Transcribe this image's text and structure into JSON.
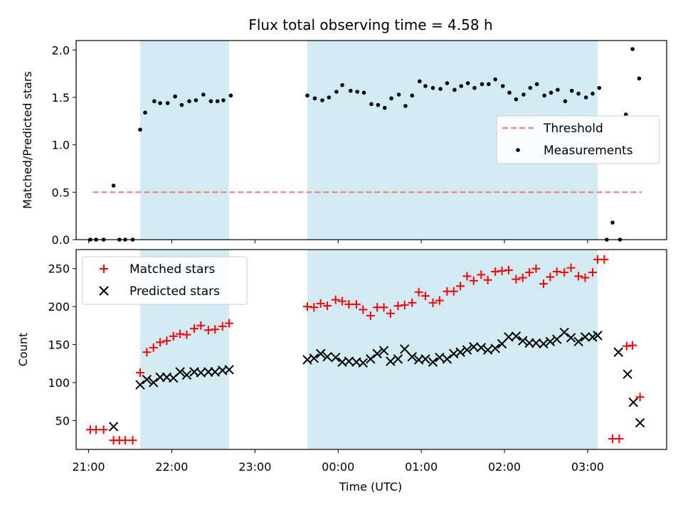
{
  "chart_data": {
    "title": "Flux total observing time = 4.58 h",
    "xlabel": "Time (UTC)",
    "x_ticks": [
      "21:00",
      "22:00",
      "23:00",
      "00:00",
      "01:00",
      "02:00",
      "03:00"
    ],
    "x_range_hours": [
      20.85,
      27.95
    ],
    "shaded_spans_hours": [
      [
        21.62,
        22.69
      ],
      [
        23.63,
        27.12
      ]
    ],
    "shade_color": "#add8e6",
    "panels": [
      {
        "type": "scatter",
        "ylabel": "Matched/Predicted stars",
        "ylim": [
          0,
          2.1
        ],
        "yticks": [
          "0.0",
          "0.5",
          "1.0",
          "1.5",
          "2.0"
        ],
        "threshold": {
          "name": "Threshold",
          "value": 0.5,
          "x_range": [
            21.05,
            27.65
          ],
          "color": "#f08080"
        },
        "legend_location": "center-right",
        "series": [
          {
            "name": "Measurements",
            "marker": "dot",
            "color": "#000000",
            "points": [
              [
                21.02,
                0.0
              ],
              [
                21.09,
                0.0
              ],
              [
                21.18,
                0.0
              ],
              [
                21.3,
                0.57
              ],
              [
                21.37,
                0.0
              ],
              [
                21.44,
                0.0
              ],
              [
                21.53,
                0.0
              ],
              [
                21.62,
                1.16
              ],
              [
                21.68,
                1.34
              ],
              [
                21.79,
                1.46
              ],
              [
                21.86,
                1.44
              ],
              [
                21.95,
                1.44
              ],
              [
                22.04,
                1.51
              ],
              [
                22.12,
                1.42
              ],
              [
                22.21,
                1.46
              ],
              [
                22.29,
                1.47
              ],
              [
                22.38,
                1.53
              ],
              [
                22.47,
                1.46
              ],
              [
                22.55,
                1.46
              ],
              [
                22.62,
                1.47
              ],
              [
                22.71,
                1.52
              ],
              [
                23.63,
                1.52
              ],
              [
                23.72,
                1.49
              ],
              [
                23.81,
                1.47
              ],
              [
                23.89,
                1.5
              ],
              [
                23.98,
                1.56
              ],
              [
                24.05,
                1.63
              ],
              [
                24.15,
                1.57
              ],
              [
                24.23,
                1.56
              ],
              [
                24.31,
                1.55
              ],
              [
                24.4,
                1.43
              ],
              [
                24.48,
                1.42
              ],
              [
                24.56,
                1.39
              ],
              [
                24.64,
                1.49
              ],
              [
                24.73,
                1.53
              ],
              [
                24.81,
                1.41
              ],
              [
                24.89,
                1.52
              ],
              [
                24.98,
                1.67
              ],
              [
                25.05,
                1.62
              ],
              [
                25.14,
                1.6
              ],
              [
                25.23,
                1.59
              ],
              [
                25.31,
                1.65
              ],
              [
                25.4,
                1.58
              ],
              [
                25.48,
                1.62
              ],
              [
                25.56,
                1.65
              ],
              [
                25.64,
                1.6
              ],
              [
                25.73,
                1.64
              ],
              [
                25.81,
                1.64
              ],
              [
                25.89,
                1.69
              ],
              [
                25.98,
                1.62
              ],
              [
                26.06,
                1.55
              ],
              [
                26.14,
                1.48
              ],
              [
                26.23,
                1.53
              ],
              [
                26.31,
                1.6
              ],
              [
                26.39,
                1.64
              ],
              [
                26.48,
                1.52
              ],
              [
                26.56,
                1.55
              ],
              [
                26.64,
                1.58
              ],
              [
                26.73,
                1.46
              ],
              [
                26.81,
                1.57
              ],
              [
                26.89,
                1.54
              ],
              [
                26.98,
                1.5
              ],
              [
                27.06,
                1.54
              ],
              [
                27.14,
                1.6
              ],
              [
                27.23,
                0.0
              ],
              [
                27.3,
                0.18
              ],
              [
                27.39,
                0.0
              ],
              [
                27.46,
                1.32
              ],
              [
                27.54,
                2.01
              ],
              [
                27.62,
                1.7
              ]
            ]
          }
        ]
      },
      {
        "type": "scatter",
        "ylabel": "Count",
        "ylim": [
          12,
          275
        ],
        "yticks": [
          "50",
          "100",
          "150",
          "200",
          "250"
        ],
        "legend_location": "top-left",
        "series": [
          {
            "name": "Matched stars",
            "marker": "plus",
            "color": "#ff0000",
            "points": [
              [
                21.02,
                38
              ],
              [
                21.09,
                38
              ],
              [
                21.18,
                38
              ],
              [
                21.3,
                24
              ],
              [
                21.37,
                24
              ],
              [
                21.44,
                24
              ],
              [
                21.53,
                24
              ],
              [
                21.62,
                113
              ],
              [
                21.7,
                140
              ],
              [
                21.78,
                146
              ],
              [
                21.86,
                153
              ],
              [
                21.94,
                155
              ],
              [
                22.02,
                161
              ],
              [
                22.1,
                164
              ],
              [
                22.18,
                163
              ],
              [
                22.27,
                171
              ],
              [
                22.35,
                175
              ],
              [
                22.44,
                169
              ],
              [
                22.52,
                170
              ],
              [
                22.61,
                174
              ],
              [
                22.69,
                178
              ],
              [
                23.63,
                200
              ],
              [
                23.71,
                199
              ],
              [
                23.79,
                204
              ],
              [
                23.87,
                201
              ],
              [
                23.97,
                209
              ],
              [
                24.05,
                207
              ],
              [
                24.13,
                203
              ],
              [
                24.22,
                203
              ],
              [
                24.3,
                196
              ],
              [
                24.39,
                188
              ],
              [
                24.47,
                199
              ],
              [
                24.55,
                199
              ],
              [
                24.63,
                191
              ],
              [
                24.72,
                201
              ],
              [
                24.8,
                202
              ],
              [
                24.89,
                205
              ],
              [
                24.97,
                219
              ],
              [
                25.05,
                214
              ],
              [
                25.14,
                205
              ],
              [
                25.22,
                208
              ],
              [
                25.31,
                220
              ],
              [
                25.39,
                220
              ],
              [
                25.47,
                227
              ],
              [
                25.55,
                240
              ],
              [
                25.63,
                234
              ],
              [
                25.72,
                242
              ],
              [
                25.8,
                235
              ],
              [
                25.89,
                246
              ],
              [
                25.97,
                247
              ],
              [
                26.05,
                248
              ],
              [
                26.14,
                236
              ],
              [
                26.22,
                238
              ],
              [
                26.3,
                245
              ],
              [
                26.38,
                250
              ],
              [
                26.47,
                230
              ],
              [
                26.55,
                239
              ],
              [
                26.63,
                246
              ],
              [
                26.72,
                245
              ],
              [
                26.8,
                251
              ],
              [
                26.89,
                240
              ],
              [
                26.97,
                238
              ],
              [
                27.06,
                245
              ],
              [
                27.12,
                262
              ],
              [
                27.2,
                262
              ],
              [
                27.3,
                26
              ],
              [
                27.38,
                26
              ],
              [
                27.47,
                148
              ],
              [
                27.54,
                149
              ],
              [
                27.63,
                81
              ]
            ]
          },
          {
            "name": "Predicted stars",
            "marker": "x",
            "color": "#000000",
            "points": [
              [
                21.3,
                42
              ],
              [
                21.62,
                97
              ],
              [
                21.7,
                104
              ],
              [
                21.78,
                100
              ],
              [
                21.86,
                107
              ],
              [
                21.94,
                107
              ],
              [
                22.02,
                106
              ],
              [
                22.1,
                114
              ],
              [
                22.18,
                110
              ],
              [
                22.27,
                114
              ],
              [
                22.35,
                113
              ],
              [
                22.44,
                114
              ],
              [
                22.52,
                114
              ],
              [
                22.61,
                116
              ],
              [
                22.69,
                117
              ],
              [
                23.63,
                130
              ],
              [
                23.71,
                132
              ],
              [
                23.79,
                138
              ],
              [
                23.87,
                134
              ],
              [
                23.97,
                133
              ],
              [
                24.05,
                127
              ],
              [
                24.13,
                128
              ],
              [
                24.22,
                127
              ],
              [
                24.3,
                126
              ],
              [
                24.39,
                131
              ],
              [
                24.47,
                138
              ],
              [
                24.55,
                142
              ],
              [
                24.63,
                128
              ],
              [
                24.72,
                131
              ],
              [
                24.8,
                144
              ],
              [
                24.89,
                134
              ],
              [
                24.97,
                130
              ],
              [
                25.05,
                131
              ],
              [
                25.14,
                127
              ],
              [
                25.22,
                133
              ],
              [
                25.31,
                131
              ],
              [
                25.39,
                138
              ],
              [
                25.47,
                140
              ],
              [
                25.55,
                143
              ],
              [
                25.63,
                147
              ],
              [
                25.72,
                146
              ],
              [
                25.8,
                143
              ],
              [
                25.89,
                145
              ],
              [
                25.97,
                151
              ],
              [
                26.05,
                160
              ],
              [
                26.14,
                161
              ],
              [
                26.22,
                155
              ],
              [
                26.3,
                152
              ],
              [
                26.38,
                152
              ],
              [
                26.47,
                151
              ],
              [
                26.55,
                154
              ],
              [
                26.63,
                157
              ],
              [
                26.72,
                166
              ],
              [
                26.8,
                159
              ],
              [
                26.89,
                154
              ],
              [
                26.97,
                160
              ],
              [
                27.06,
                160
              ],
              [
                27.12,
                162
              ],
              [
                27.37,
                140
              ],
              [
                27.48,
                111
              ],
              [
                27.55,
                74
              ],
              [
                27.63,
                47
              ]
            ]
          }
        ]
      }
    ]
  }
}
